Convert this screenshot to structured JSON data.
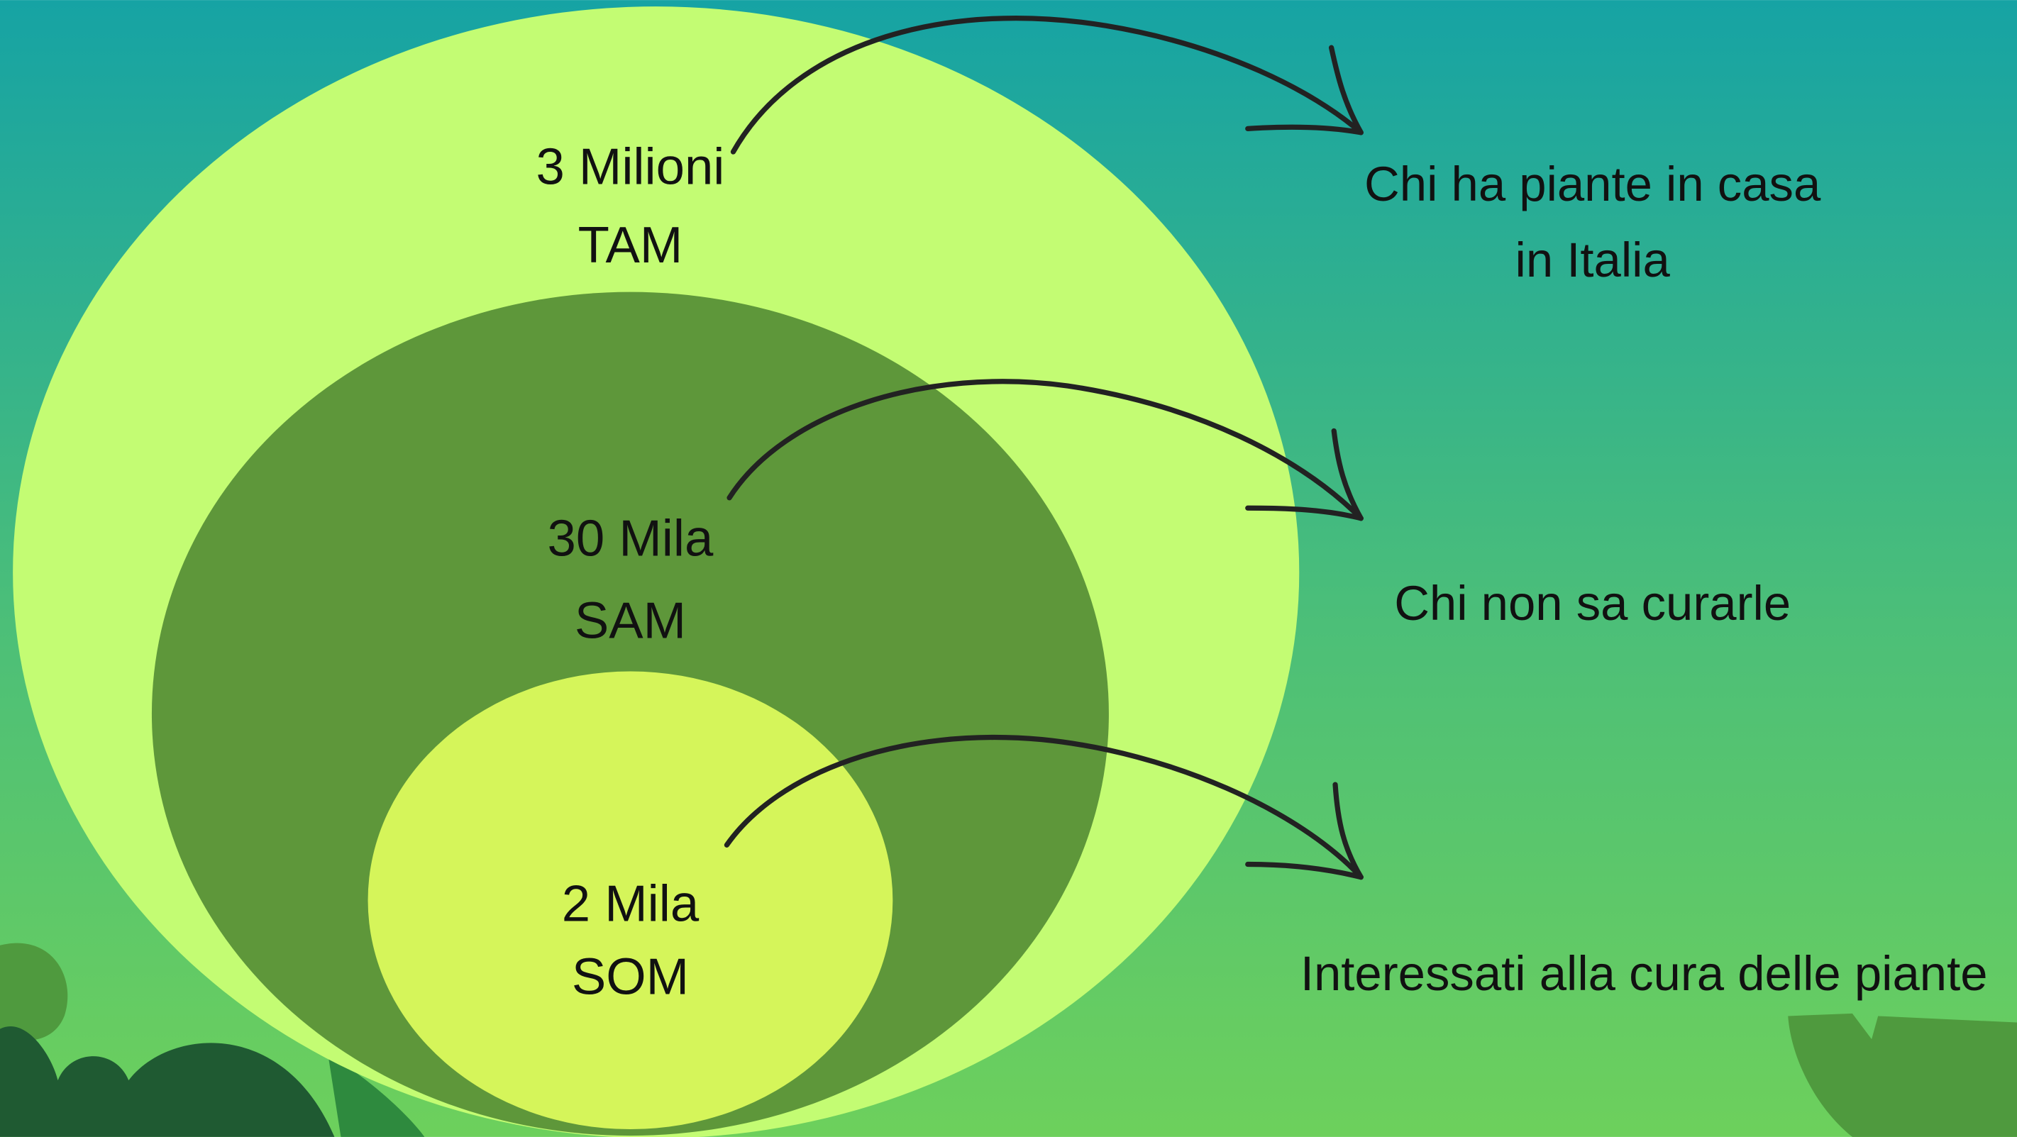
{
  "levels": [
    {
      "value": "3 Milioni",
      "label": "TAM",
      "description": [
        "Chi ha piante in casa",
        "in Italia"
      ]
    },
    {
      "value": "30 Mila",
      "label": "SAM",
      "description": [
        "Chi non sa curarle"
      ]
    },
    {
      "value": "2 Mila",
      "label": "SOM",
      "description": [
        "Interessati alla cura delle piante"
      ]
    }
  ]
}
